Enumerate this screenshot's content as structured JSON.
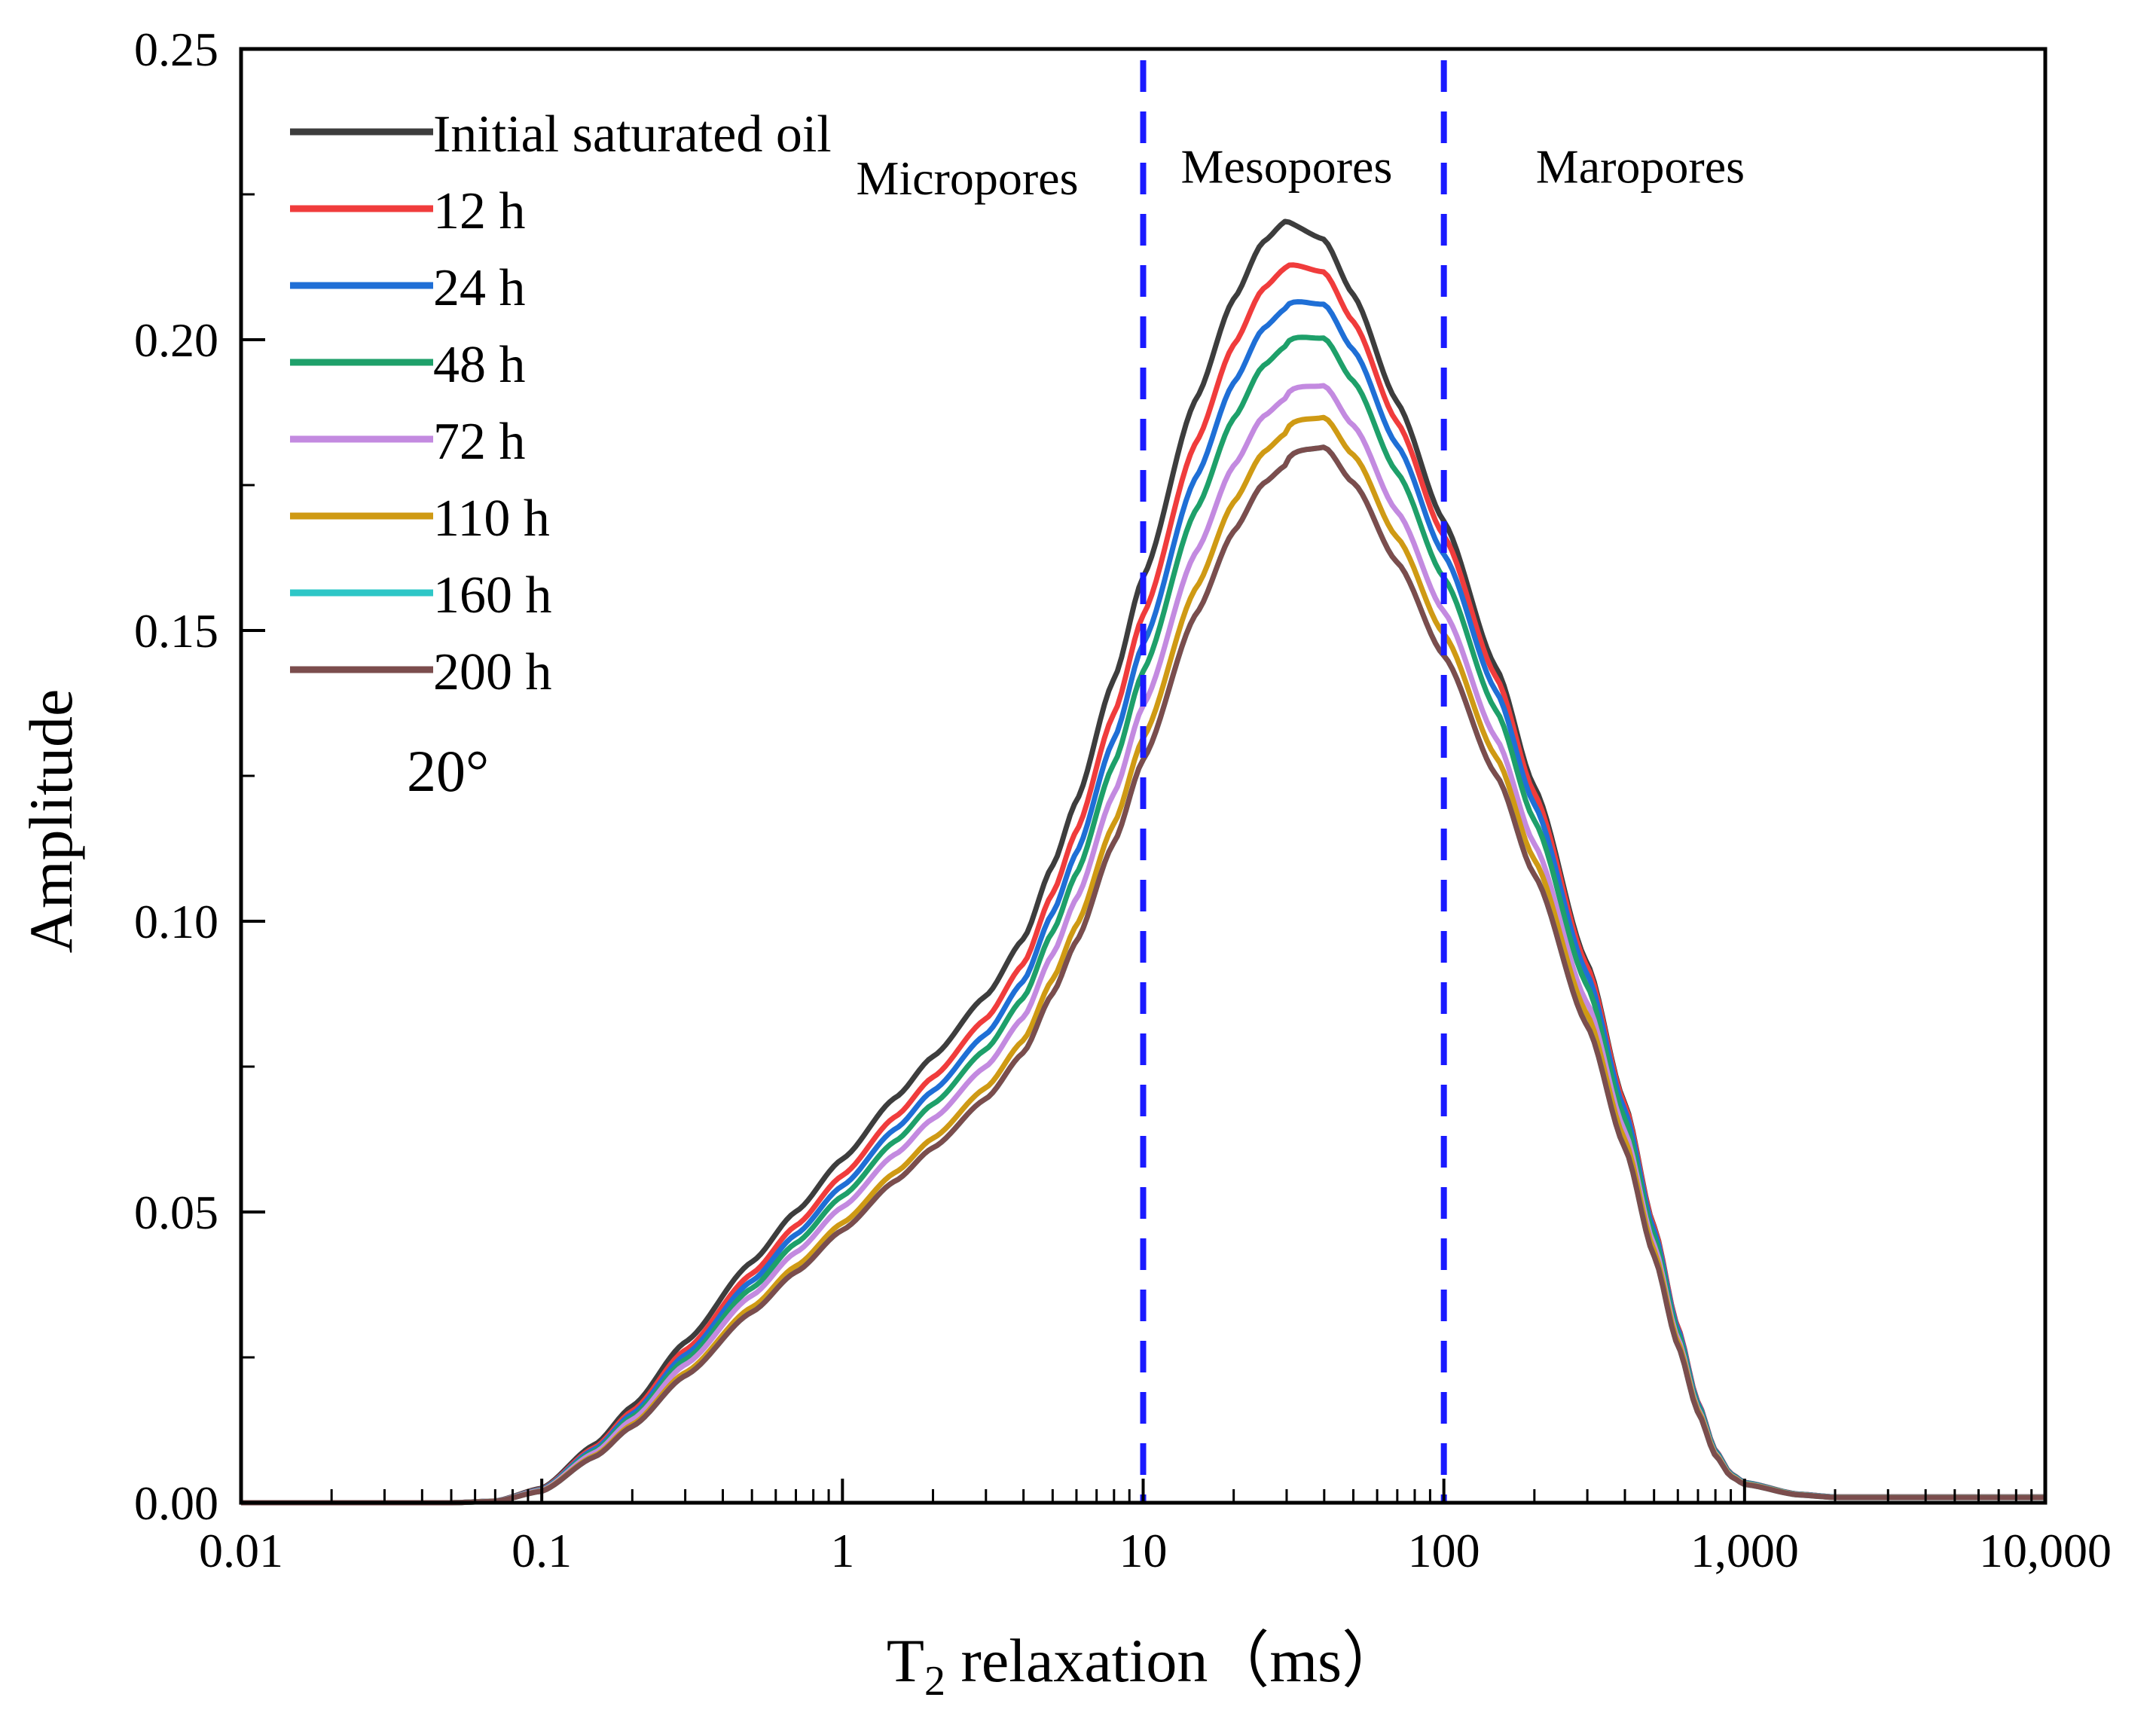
{
  "chart_data": {
    "type": "line",
    "title": "",
    "xlabel_main": "T",
    "xlabel_sub": "2",
    "xlabel_rest": " relaxation（ms）",
    "ylabel": "Amplitude",
    "xscale": "log",
    "xlim": [
      0.01,
      10000
    ],
    "ylim": [
      0,
      0.25
    ],
    "xticks": [
      {
        "value": 0.01,
        "label": "0.01"
      },
      {
        "value": 0.1,
        "label": "0.1"
      },
      {
        "value": 1,
        "label": "1"
      },
      {
        "value": 10,
        "label": "10"
      },
      {
        "value": 100,
        "label": "100"
      },
      {
        "value": 1000,
        "label": "1,000"
      },
      {
        "value": 10000,
        "label": "10,000"
      }
    ],
    "yticks": [
      {
        "value": 0,
        "label": "0.00"
      },
      {
        "value": 0.05,
        "label": "0.05"
      },
      {
        "value": 0.1,
        "label": "0.10"
      },
      {
        "value": 0.15,
        "label": "0.15"
      },
      {
        "value": 0.2,
        "label": "0.20"
      },
      {
        "value": 0.25,
        "label": "0.25"
      }
    ],
    "annotation": "20°",
    "dividers": [
      {
        "x": 10,
        "color": "#1a1aff"
      },
      {
        "x": 100,
        "color": "#1a1aff"
      }
    ],
    "regions": [
      {
        "label": "Micropores",
        "x": 2.6,
        "y": 0.225
      },
      {
        "label": "Mesopores",
        "x": 30,
        "y": 0.227
      },
      {
        "label": "Maropores",
        "x": 450,
        "y": 0.227
      }
    ],
    "legend_position": "top-left",
    "base_profile": {
      "x": [
        0.01,
        0.05,
        0.07,
        0.1,
        0.15,
        0.2,
        0.3,
        0.5,
        0.7,
        1,
        1.5,
        2,
        3,
        4,
        5,
        6,
        8,
        10,
        15,
        20,
        25,
        30,
        40,
        50,
        70,
        100,
        150,
        200,
        300,
        400,
        500,
        600,
        700,
        800,
        900,
        1000,
        1500,
        2000,
        5000,
        10000
      ],
      "y": [
        0,
        0,
        0.0003,
        0.0025,
        0.01,
        0.0166,
        0.0276,
        0.0414,
        0.05,
        0.059,
        0.0695,
        0.0765,
        0.0868,
        0.0965,
        0.109,
        0.12,
        0.1407,
        0.158,
        0.1882,
        0.205,
        0.2145,
        0.218,
        0.2155,
        0.2063,
        0.1882,
        0.168,
        0.1429,
        0.1228,
        0.0926,
        0.0686,
        0.0475,
        0.0302,
        0.0173,
        0.009,
        0.005,
        0.0035,
        0.0015,
        0.001,
        0.001,
        0.001
      ]
    },
    "series": [
      {
        "name": "Initial saturated oil",
        "color": "#3d3d3d",
        "peak": 0.2205,
        "leftscale": 1.0,
        "rightscale": 1.0
      },
      {
        "name": "12 h",
        "color": "#f03c3c",
        "peak": 0.2125,
        "leftscale": 0.95,
        "rightscale": 1.0
      },
      {
        "name": "24 h",
        "color": "#1f6fd6",
        "peak": 0.2055,
        "leftscale": 0.92,
        "rightscale": 0.99
      },
      {
        "name": "48 h",
        "color": "#1ea06a",
        "peak": 0.199,
        "leftscale": 0.89,
        "rightscale": 0.97
      },
      {
        "name": "72 h",
        "color": "#c38ae0",
        "peak": 0.19,
        "leftscale": 0.86,
        "rightscale": 0.94
      },
      {
        "name": "110 h",
        "color": "#cf9a14",
        "peak": 0.184,
        "leftscale": 0.81,
        "rightscale": 0.92
      },
      {
        "name": "160 h",
        "color": "#2ec7c7",
        "peak": 0.1785,
        "leftscale": 0.79,
        "rightscale": 0.9
      },
      {
        "name": "200 h",
        "color": "#7b4d4d",
        "peak": 0.1785,
        "leftscale": 0.79,
        "rightscale": 0.9
      }
    ]
  }
}
